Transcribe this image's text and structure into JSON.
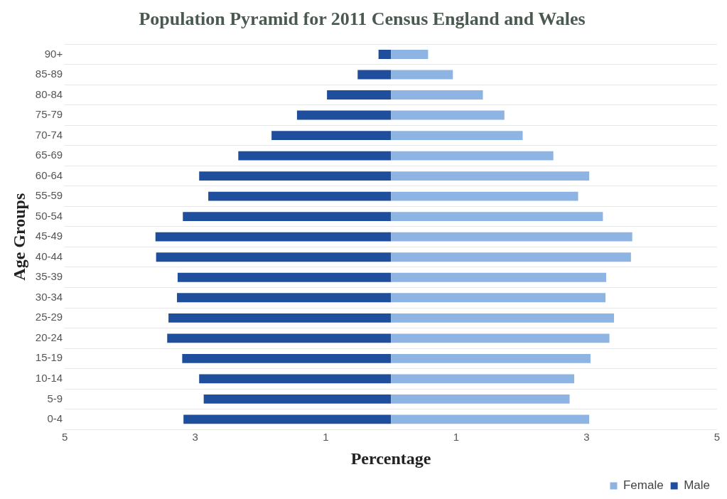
{
  "chart_data": {
    "type": "bar",
    "orientation": "horizontal",
    "stacked": true,
    "title": "Population Pyramid for 2011 Census England and Wales",
    "xlabel": "Percentage",
    "ylabel": "Age Groups",
    "categories": [
      "90+",
      "85-89",
      "80-84",
      "75-79",
      "70-74",
      "65-69",
      "60-64",
      "55-59",
      "50-54",
      "45-49",
      "40-44",
      "35-39",
      "30-34",
      "25-29",
      "20-24",
      "15-19",
      "10-14",
      "5-9",
      "0-4"
    ],
    "series": [
      {
        "name": "Female",
        "color": "#8eb4e3",
        "values": [
          0.57,
          0.95,
          1.41,
          1.74,
          2.02,
          2.49,
          3.04,
          2.87,
          3.25,
          3.7,
          3.68,
          3.3,
          3.29,
          3.42,
          3.35,
          3.06,
          2.81,
          2.74,
          3.04
        ]
      },
      {
        "name": "Male",
        "color": "#1f4e9c",
        "values": [
          -0.19,
          -0.51,
          -0.98,
          -1.44,
          -1.83,
          -2.34,
          -2.94,
          -2.8,
          -3.19,
          -3.61,
          -3.6,
          -3.27,
          -3.28,
          -3.41,
          -3.43,
          -3.2,
          -2.94,
          -2.87,
          -3.18
        ]
      }
    ],
    "xlim": [
      -5,
      5
    ],
    "xticks": [
      {
        "value": -5,
        "label": "5"
      },
      {
        "value": -3,
        "label": "3"
      },
      {
        "value": -1,
        "label": "1"
      },
      1,
      3,
      5
    ],
    "grid": "y",
    "legend": "bottom right"
  }
}
